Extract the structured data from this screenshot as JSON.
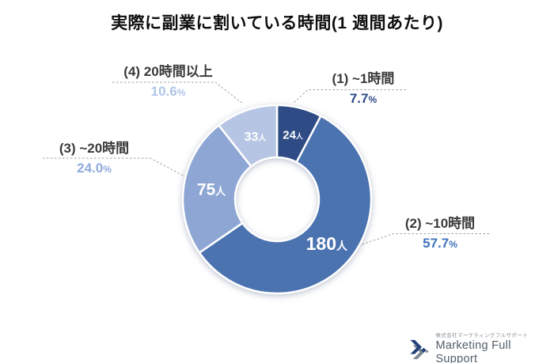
{
  "title": "実際に副業に割いている時間(1 週間あたり)",
  "chart_data": {
    "type": "donut",
    "title": "実際に副業に割いている時間(1 週間あたり)",
    "unit_suffix": "人",
    "percent_suffix": "%",
    "start_angle_deg": 0,
    "direction": "clockwise",
    "legend_position": "callout-labels",
    "segments": [
      {
        "rank": 1,
        "label": "~1時間",
        "display_label": "(1) ~1時間",
        "percent": "7.7",
        "percent_value": 7.7,
        "count": 24,
        "color": "#2e4c86",
        "percent_color": "#2e4c86"
      },
      {
        "rank": 2,
        "label": "~10時間",
        "display_label": "(2) ~10時間",
        "percent": "57.7",
        "percent_value": 57.7,
        "count": 180,
        "color": "#4c73b0",
        "percent_color": "#4273be"
      },
      {
        "rank": 3,
        "label": "~20時間",
        "display_label": "(3) ~20時間",
        "percent": "24.0",
        "percent_value": 24.0,
        "count": 75,
        "color": "#8ea6d3",
        "percent_color": "#8fabdc"
      },
      {
        "rank": 4,
        "label": "20時間以上",
        "display_label": "(4) 20時間以上",
        "percent": "10.6",
        "percent_value": 10.6,
        "count": 33,
        "color": "#b6c5e3",
        "percent_color": "#aec4e8"
      }
    ]
  },
  "logo": {
    "company_jp": "株式会社マーケティングフルサポート",
    "company_en": "Marketing Full Support",
    "mark_navy": "#24427a",
    "mark_gray": "#7d8791"
  }
}
